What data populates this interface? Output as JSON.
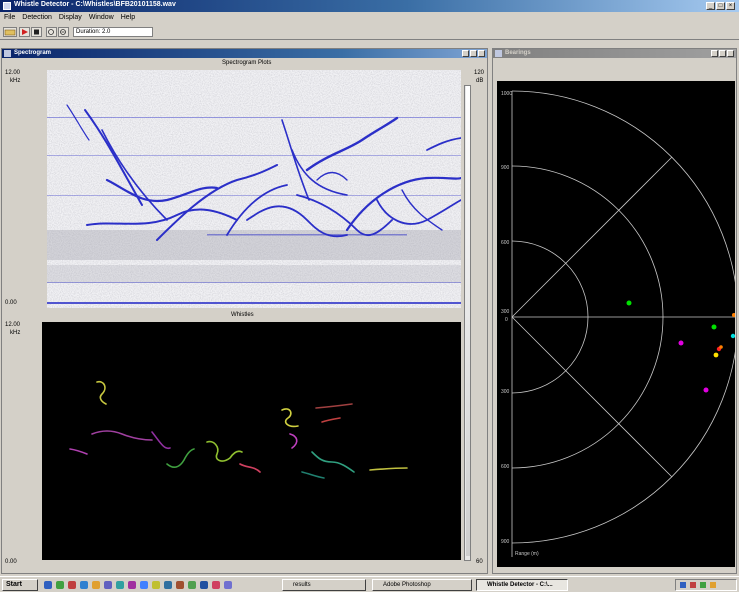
{
  "app": {
    "title": "Whistle Detector - C:\\Whistles\\BFB20101158.wav",
    "window_controls": [
      "_",
      "□",
      "×"
    ]
  },
  "menu": [
    "File",
    "Detection",
    "Display",
    "Window",
    "Help"
  ],
  "toolbar": {
    "duration_value": "Duration: 2.0"
  },
  "spectrogram_panel": {
    "title": "Spectrogram",
    "plot_title": "Spectrogram Plots",
    "y_top": "12.00",
    "y_unit": "kHz",
    "y_bottom": "0.00",
    "scale_top": "120",
    "scale_sub": "dB",
    "data_color": "#2b2fc8"
  },
  "whistles_panel": {
    "plot_title": "Whistles",
    "y_top": "12.00",
    "y_unit": "kHz",
    "y_bottom": "0.00",
    "scale_bottom": "60"
  },
  "bearing_panel": {
    "title": "Bearings",
    "axis_ticks": [
      "1000",
      "900",
      "600",
      "300",
      "0",
      "300",
      "600",
      "900"
    ],
    "range_label": "Range (m)",
    "point_colors": [
      "#00e000",
      "#e000e0",
      "#ff2020",
      "#ffe000",
      "#00e0e0"
    ]
  },
  "taskbar": {
    "start_label": "Start",
    "tasks": [
      {
        "label": "results"
      },
      {
        "label": "Adobe Photoshop"
      },
      {
        "label": "Whistle Detector - C:\\..."
      }
    ]
  }
}
